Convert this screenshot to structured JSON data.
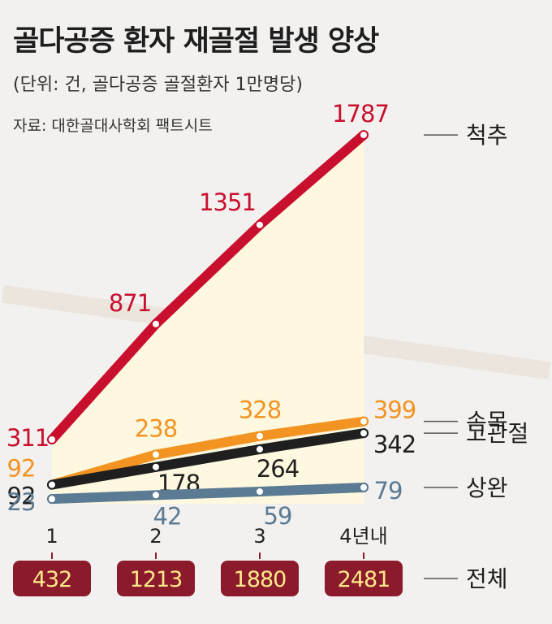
{
  "title": "골다공증 환자 재골절 발생 양상",
  "subtitle": "(단위: 건, 골다공증 골절환자 1만명당)",
  "source": "자료: 대한골대사학회 팩트시트",
  "chart_data": {
    "type": "line",
    "categories": [
      "1",
      "2",
      "3",
      "4년내"
    ],
    "series": [
      {
        "name": "척추",
        "values": [
          311,
          871,
          1351,
          1787
        ],
        "color": "#c8102e"
      },
      {
        "name": "손목",
        "values": [
          92,
          238,
          328,
          399
        ],
        "color": "#f39322"
      },
      {
        "name": "고관절",
        "values": [
          92,
          178,
          264,
          342
        ],
        "color": "#1f1f1f"
      },
      {
        "name": "상완",
        "values": [
          23,
          42,
          59,
          79
        ],
        "color": "#5b7a93"
      }
    ],
    "totals": {
      "name": "전체",
      "values": [
        432,
        1213,
        1880,
        2481
      ],
      "box_color": "#8b1a2c",
      "text_color": "#ffe98a"
    },
    "ylim": [
      0,
      2000
    ],
    "grid": false,
    "legend": "right"
  }
}
